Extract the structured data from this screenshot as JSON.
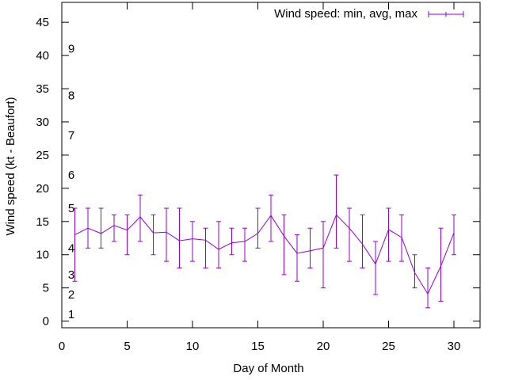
{
  "chart_data": {
    "type": "line",
    "xlabel": "Day of Month",
    "ylabel": "Wind speed (kt - Beaufort)",
    "xlim": [
      0,
      32
    ],
    "ylim": [
      -1,
      48
    ],
    "x_ticks": [
      0,
      5,
      10,
      15,
      20,
      25,
      30
    ],
    "y_ticks": [
      0,
      5,
      10,
      15,
      20,
      25,
      30,
      35,
      40,
      45
    ],
    "grid": false,
    "legend_position": "top-right",
    "beaufort_labels": [
      {
        "value": 1,
        "label": "1"
      },
      {
        "value": 4,
        "label": "2"
      },
      {
        "value": 7,
        "label": "3"
      },
      {
        "value": 11,
        "label": "4"
      },
      {
        "value": 17,
        "label": "5"
      },
      {
        "value": 22,
        "label": "6"
      },
      {
        "value": 28,
        "label": "7"
      },
      {
        "value": 34,
        "label": "8"
      },
      {
        "value": 41,
        "label": "9"
      }
    ],
    "series": [
      {
        "name": "Wind speed: min, avg, max",
        "color": "#9400d3",
        "x": [
          1,
          2,
          3,
          4,
          5,
          6,
          7,
          8,
          9,
          10,
          11,
          12,
          13,
          14,
          15,
          16,
          17,
          18,
          19,
          20,
          21,
          22,
          23,
          24,
          25,
          26,
          27,
          28,
          29,
          30
        ],
        "avg": [
          13,
          14,
          13.2,
          14.4,
          13.7,
          15.7,
          13.3,
          13.4,
          12.1,
          12.4,
          12.2,
          10.8,
          11.8,
          12,
          13.2,
          15.9,
          12.8,
          10.2,
          10.6,
          11,
          16,
          14,
          11.6,
          8.6,
          13.8,
          12.6,
          7.3,
          4.1,
          8.3,
          13.3
        ],
        "min": [
          6,
          11,
          11,
          12,
          10,
          12,
          10,
          9,
          8,
          9,
          8,
          8,
          10,
          9,
          11,
          12,
          7,
          6,
          8,
          5,
          11,
          9,
          8,
          4,
          9,
          9,
          5,
          2,
          3,
          10
        ],
        "max": [
          17,
          17,
          17,
          16,
          16,
          19,
          16,
          17,
          17,
          15,
          14,
          15,
          14,
          14,
          17,
          19,
          16,
          13,
          14,
          15,
          22,
          17,
          16,
          12,
          17,
          16,
          10,
          8,
          14,
          16
        ]
      }
    ]
  }
}
